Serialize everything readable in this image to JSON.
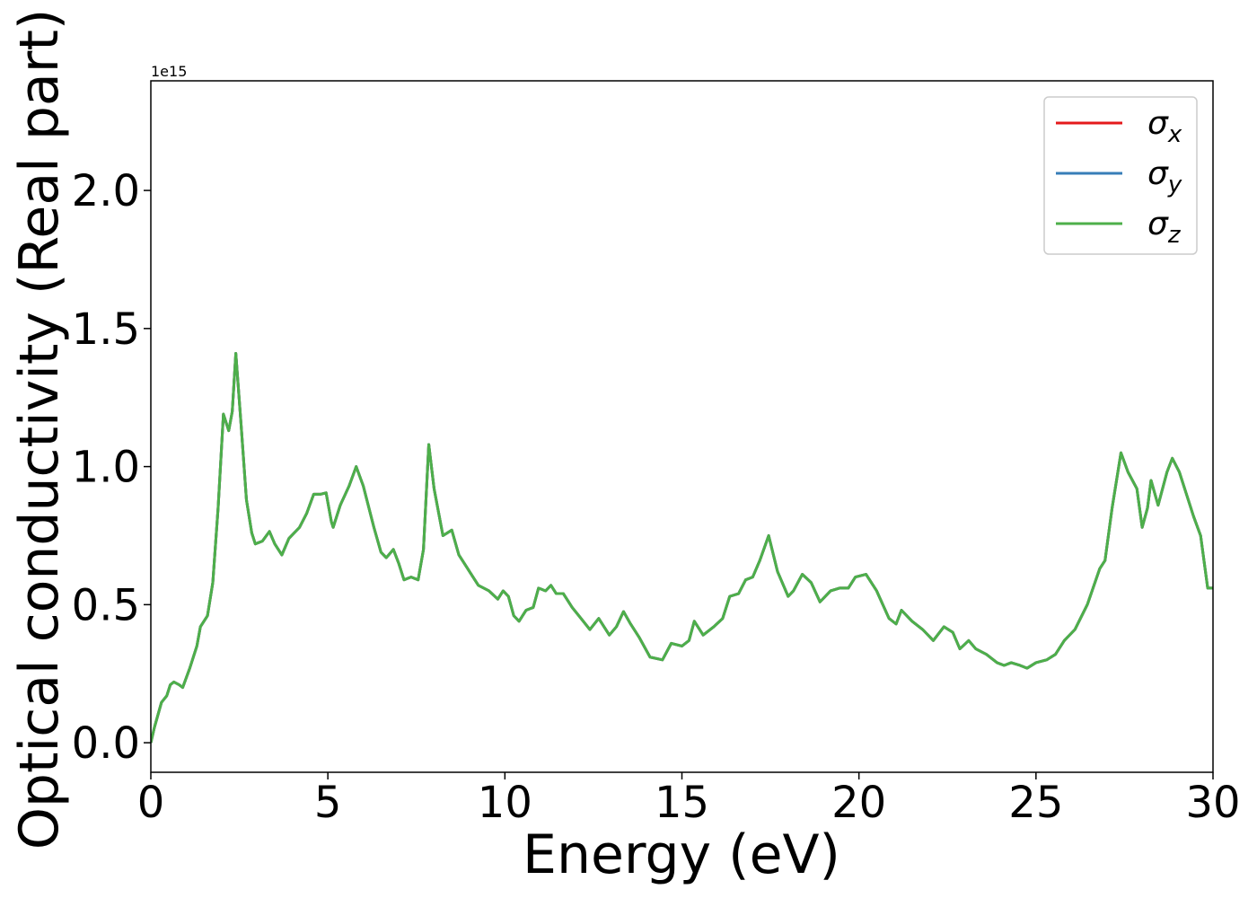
{
  "chart_data": {
    "type": "line",
    "xlabel": "Energy (eV)",
    "ylabel": "Optical conductivity (Real part)",
    "offset_label": "1e15",
    "xlim": [
      0,
      30
    ],
    "ylim": [
      -0.107,
      2.397
    ],
    "xticks": [
      0,
      5,
      10,
      15,
      20,
      25,
      30
    ],
    "yticks": [
      {
        "value": 0,
        "label": "0.0"
      },
      {
        "value": 0.5,
        "label": "0.5"
      },
      {
        "value": 1,
        "label": "1.0"
      },
      {
        "value": 1.5,
        "label": "1.5"
      },
      {
        "value": 2,
        "label": "2.0"
      }
    ],
    "legend": "upper right",
    "x": [
      0,
      0.1,
      0.3,
      0.45,
      0.55,
      0.65,
      0.8,
      0.9,
      1.1,
      1.3,
      1.4,
      1.6,
      1.75,
      1.9,
      2.05,
      2.2,
      2.3,
      2.4,
      2.55,
      2.7,
      2.85,
      2.95,
      3.15,
      3.35,
      3.5,
      3.7,
      3.9,
      4.2,
      4.4,
      4.6,
      4.8,
      4.95,
      5.1,
      5.15,
      5.35,
      5.6,
      5.8,
      6.0,
      6.3,
      6.5,
      6.65,
      6.85,
      7.0,
      7.15,
      7.35,
      7.55,
      7.7,
      7.85,
      8.0,
      8.25,
      8.5,
      8.7,
      8.95,
      9.25,
      9.55,
      9.8,
      9.95,
      10.1,
      10.25,
      10.4,
      10.6,
      10.8,
      10.95,
      11.15,
      11.3,
      11.45,
      11.65,
      11.9,
      12.15,
      12.4,
      12.65,
      12.95,
      13.15,
      13.35,
      13.55,
      13.8,
      14.1,
      14.45,
      14.7,
      15.0,
      15.2,
      15.35,
      15.6,
      15.9,
      16.15,
      16.35,
      16.6,
      16.8,
      17.0,
      17.2,
      17.45,
      17.7,
      18.0,
      18.15,
      18.4,
      18.65,
      18.9,
      19.2,
      19.45,
      19.7,
      19.9,
      20.2,
      20.5,
      20.85,
      21.05,
      21.2,
      21.5,
      21.8,
      22.1,
      22.4,
      22.65,
      22.85,
      23.1,
      23.3,
      23.6,
      23.9,
      24.1,
      24.3,
      24.55,
      24.75,
      25.0,
      25.3,
      25.55,
      25.8,
      26.1,
      26.45,
      26.8,
      26.95,
      27.15,
      27.4,
      27.6,
      27.85,
      28.0,
      28.15,
      28.25,
      28.45,
      28.7,
      28.85,
      29.05,
      29.25,
      29.45,
      29.65,
      29.85,
      30
    ],
    "series": [
      {
        "name": "σx",
        "color": "#e41a1c",
        "values": [
          0,
          0.055,
          0.146,
          0.17,
          0.21,
          0.22,
          0.21,
          0.2,
          0.27,
          0.35,
          0.42,
          0.46,
          0.58,
          0.85,
          1.19,
          1.13,
          1.2,
          1.41,
          1.15,
          0.88,
          0.76,
          0.72,
          0.73,
          0.765,
          0.72,
          0.68,
          0.74,
          0.78,
          0.83,
          0.9,
          0.9,
          0.905,
          0.8,
          0.78,
          0.86,
          0.93,
          1.0,
          0.93,
          0.78,
          0.69,
          0.67,
          0.7,
          0.65,
          0.59,
          0.6,
          0.59,
          0.7,
          1.08,
          0.92,
          0.75,
          0.77,
          0.68,
          0.63,
          0.57,
          0.55,
          0.52,
          0.55,
          0.53,
          0.46,
          0.44,
          0.48,
          0.49,
          0.56,
          0.55,
          0.57,
          0.54,
          0.54,
          0.49,
          0.45,
          0.41,
          0.45,
          0.39,
          0.42,
          0.475,
          0.43,
          0.38,
          0.31,
          0.3,
          0.36,
          0.35,
          0.37,
          0.44,
          0.39,
          0.42,
          0.45,
          0.53,
          0.54,
          0.59,
          0.6,
          0.66,
          0.75,
          0.62,
          0.53,
          0.55,
          0.61,
          0.58,
          0.51,
          0.55,
          0.56,
          0.56,
          0.6,
          0.61,
          0.55,
          0.45,
          0.43,
          0.48,
          0.44,
          0.41,
          0.37,
          0.42,
          0.4,
          0.34,
          0.37,
          0.34,
          0.32,
          0.29,
          0.28,
          0.29,
          0.28,
          0.27,
          0.29,
          0.3,
          0.32,
          0.37,
          0.41,
          0.5,
          0.63,
          0.66,
          0.85,
          1.05,
          0.98,
          0.92,
          0.78,
          0.85,
          0.95,
          0.86,
          0.98,
          1.03,
          0.98,
          0.9,
          0.82,
          0.75,
          0.56,
          0.56
        ]
      },
      {
        "name": "σy",
        "color": "#377eb8",
        "values": [
          0,
          0.055,
          0.146,
          0.17,
          0.21,
          0.22,
          0.21,
          0.2,
          0.27,
          0.35,
          0.42,
          0.46,
          0.58,
          0.85,
          1.19,
          1.13,
          1.2,
          1.41,
          1.15,
          0.88,
          0.76,
          0.72,
          0.73,
          0.765,
          0.72,
          0.68,
          0.74,
          0.78,
          0.83,
          0.9,
          0.9,
          0.905,
          0.8,
          0.78,
          0.86,
          0.93,
          1.0,
          0.93,
          0.78,
          0.69,
          0.67,
          0.7,
          0.65,
          0.59,
          0.6,
          0.59,
          0.7,
          1.08,
          0.92,
          0.75,
          0.77,
          0.68,
          0.63,
          0.57,
          0.55,
          0.52,
          0.55,
          0.53,
          0.46,
          0.44,
          0.48,
          0.49,
          0.56,
          0.55,
          0.57,
          0.54,
          0.54,
          0.49,
          0.45,
          0.41,
          0.45,
          0.39,
          0.42,
          0.475,
          0.43,
          0.38,
          0.31,
          0.3,
          0.36,
          0.35,
          0.37,
          0.44,
          0.39,
          0.42,
          0.45,
          0.53,
          0.54,
          0.59,
          0.6,
          0.66,
          0.75,
          0.62,
          0.53,
          0.55,
          0.61,
          0.58,
          0.51,
          0.55,
          0.56,
          0.56,
          0.6,
          0.61,
          0.55,
          0.45,
          0.43,
          0.48,
          0.44,
          0.41,
          0.37,
          0.42,
          0.4,
          0.34,
          0.37,
          0.34,
          0.32,
          0.29,
          0.28,
          0.29,
          0.28,
          0.27,
          0.29,
          0.3,
          0.32,
          0.37,
          0.41,
          0.5,
          0.63,
          0.66,
          0.85,
          1.05,
          0.98,
          0.92,
          0.78,
          0.85,
          0.95,
          0.86,
          0.98,
          1.03,
          0.98,
          0.9,
          0.82,
          0.75,
          0.56,
          0.56
        ]
      },
      {
        "name": "σz",
        "color": "#4daf4a",
        "values": [
          0,
          0.055,
          0.146,
          0.17,
          0.21,
          0.22,
          0.21,
          0.2,
          0.27,
          0.35,
          0.42,
          0.46,
          0.58,
          0.85,
          1.19,
          1.13,
          1.2,
          1.41,
          1.15,
          0.88,
          0.76,
          0.72,
          0.73,
          0.765,
          0.72,
          0.68,
          0.74,
          0.78,
          0.83,
          0.9,
          0.9,
          0.905,
          0.8,
          0.78,
          0.86,
          0.93,
          1.0,
          0.93,
          0.78,
          0.69,
          0.67,
          0.7,
          0.65,
          0.59,
          0.6,
          0.59,
          0.7,
          1.08,
          0.92,
          0.75,
          0.77,
          0.68,
          0.63,
          0.57,
          0.55,
          0.52,
          0.55,
          0.53,
          0.46,
          0.44,
          0.48,
          0.49,
          0.56,
          0.55,
          0.57,
          0.54,
          0.54,
          0.49,
          0.45,
          0.41,
          0.45,
          0.39,
          0.42,
          0.475,
          0.43,
          0.38,
          0.31,
          0.3,
          0.36,
          0.35,
          0.37,
          0.44,
          0.39,
          0.42,
          0.45,
          0.53,
          0.54,
          0.59,
          0.6,
          0.66,
          0.75,
          0.62,
          0.53,
          0.55,
          0.61,
          0.58,
          0.51,
          0.55,
          0.56,
          0.56,
          0.6,
          0.61,
          0.55,
          0.45,
          0.43,
          0.48,
          0.44,
          0.41,
          0.37,
          0.42,
          0.4,
          0.34,
          0.37,
          0.34,
          0.32,
          0.29,
          0.28,
          0.29,
          0.28,
          0.27,
          0.29,
          0.3,
          0.32,
          0.37,
          0.41,
          0.5,
          0.63,
          0.66,
          0.85,
          1.05,
          0.98,
          0.92,
          0.78,
          0.85,
          0.95,
          0.86,
          0.98,
          1.03,
          0.98,
          0.9,
          0.82,
          0.75,
          0.56,
          0.56
        ]
      }
    ]
  }
}
